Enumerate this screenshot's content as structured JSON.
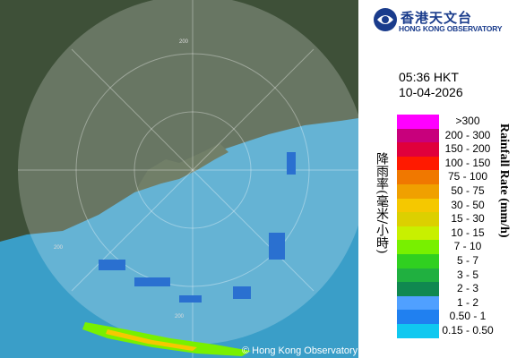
{
  "header": {
    "title_cn": "香港天文台",
    "title_en": "HONG KONG OBSERVATORY"
  },
  "timestamp": {
    "time": "05:36 HKT",
    "date": "10-04-2026"
  },
  "legend": {
    "title_cn": "降雨率(毫米/小時)",
    "title_en": "Rainfall Rate (mm/h)",
    "items": [
      {
        "label": ">300",
        "color": "#ff00ff"
      },
      {
        "label": "200 - 300",
        "color": "#c8007c"
      },
      {
        "label": "150 - 200",
        "color": "#e0003c"
      },
      {
        "label": "100 - 150",
        "color": "#ff1a00"
      },
      {
        "label": "75 - 100",
        "color": "#f07800"
      },
      {
        "label": "50 - 75",
        "color": "#f0a000"
      },
      {
        "label": "30 - 50",
        "color": "#f5c800"
      },
      {
        "label": "15 - 30",
        "color": "#dcd000"
      },
      {
        "label": "10 - 15",
        "color": "#c8f000"
      },
      {
        "label": "7 - 10",
        "color": "#78f000"
      },
      {
        "label": "5 - 7",
        "color": "#30d020"
      },
      {
        "label": "3 - 5",
        "color": "#20b040"
      },
      {
        "label": "2 - 3",
        "color": "#108850"
      },
      {
        "label": "1 - 2",
        "color": "#50a0ff"
      },
      {
        "label": "0.50 - 1",
        "color": "#2080f0"
      },
      {
        "label": "0.15 - 0.50",
        "color": "#10c8f0"
      }
    ]
  },
  "map": {
    "ring_labels": [
      "200",
      "200",
      "200"
    ],
    "copyright": "© Hong Kong Observatory"
  }
}
